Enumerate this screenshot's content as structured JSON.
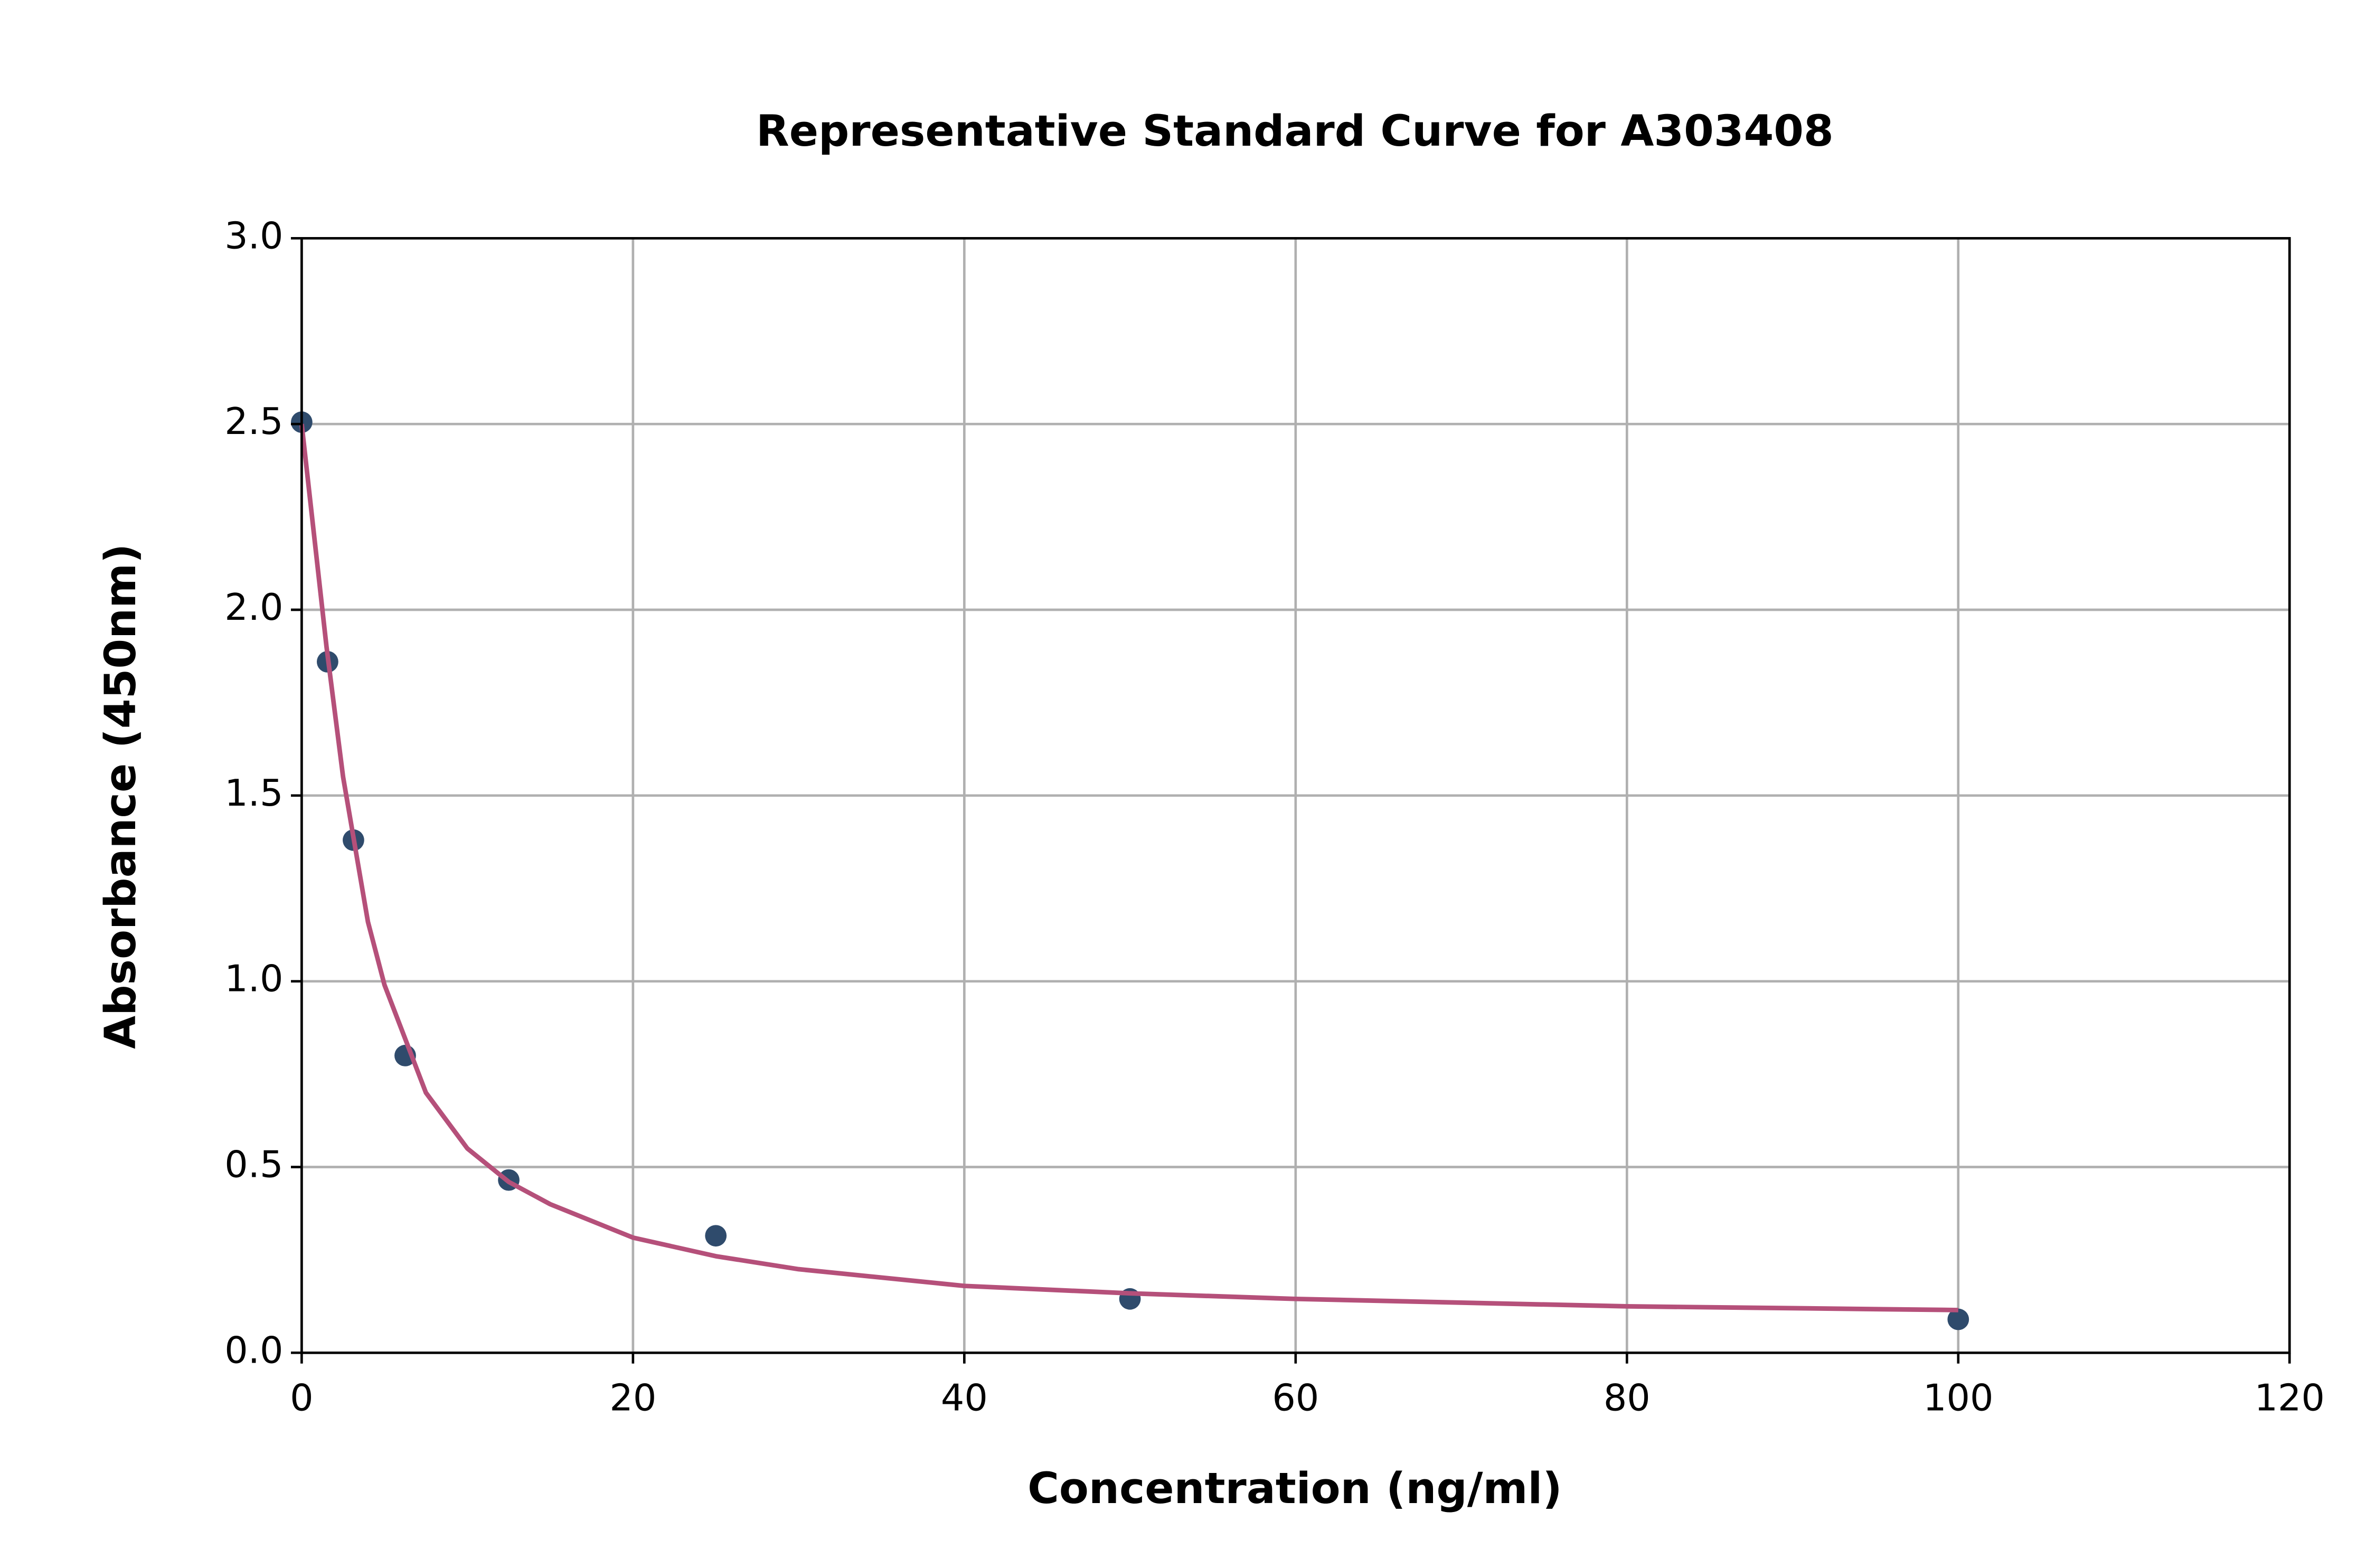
{
  "chart_data": {
    "type": "scatter",
    "title": "Representative Standard Curve for A303408",
    "x_label": "Concentration (ng/ml)",
    "y_label": "Absorbance (450nm)",
    "xlim": [
      0,
      120
    ],
    "xticks": [
      0,
      20,
      40,
      60,
      80,
      100,
      120
    ],
    "ylim": [
      0,
      3
    ],
    "yticks": [
      {
        "value": 0,
        "label": "0.0"
      },
      0.5,
      {
        "value": 1,
        "label": "1.0"
      },
      1.5,
      {
        "value": 2,
        "label": "2.0"
      },
      2.5,
      {
        "value": 3,
        "label": "3.0"
      }
    ],
    "grid": true,
    "series": [
      {
        "type": "scatter",
        "color": "#2f4b6c",
        "x": [
          0,
          1.5625,
          3.125,
          6.25,
          12.5,
          25,
          50,
          100
        ],
        "values": [
          2.505,
          1.86,
          1.38,
          0.8,
          0.465,
          0.315,
          0.145,
          0.09
        ]
      },
      {
        "type": "line",
        "color": "#b5507a",
        "x": [
          0,
          1.5,
          2.5,
          4,
          5,
          7.5,
          10,
          12.5,
          15,
          20,
          25,
          30,
          40,
          50,
          60,
          80,
          100
        ],
        "values": [
          2.5,
          1.9,
          1.55,
          1.16,
          0.99,
          0.7,
          0.55,
          0.46,
          0.4,
          0.31,
          0.26,
          0.225,
          0.18,
          0.16,
          0.145,
          0.125,
          0.115
        ]
      }
    ]
  }
}
